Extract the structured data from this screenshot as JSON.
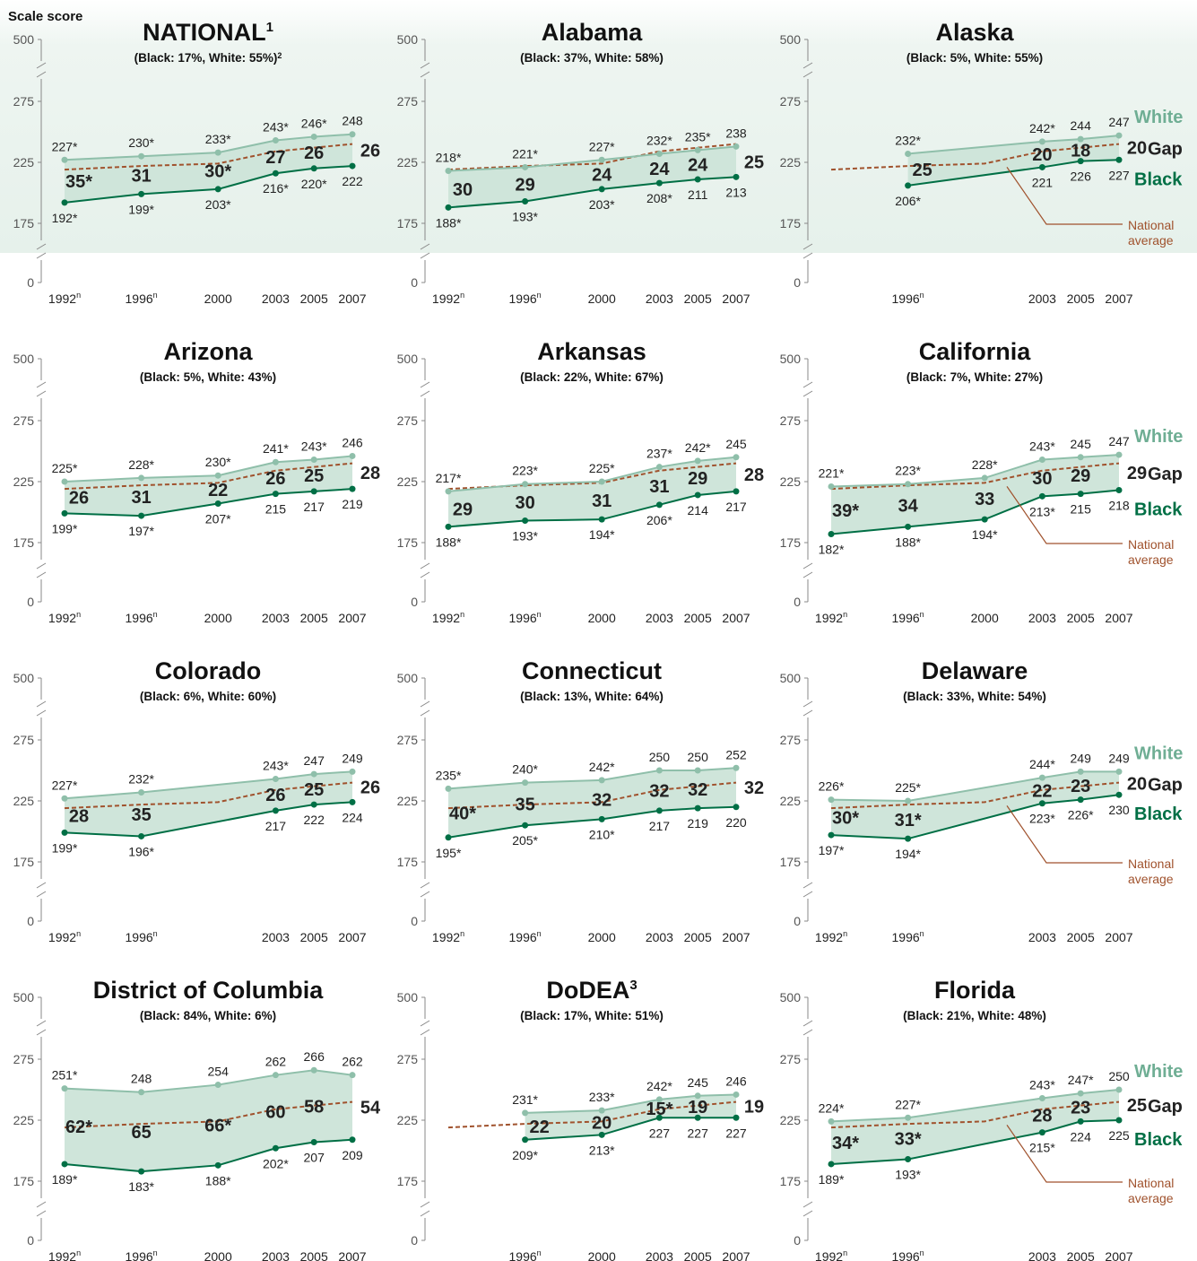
{
  "y_axis_label": "Scale score",
  "y_ticks": [
    "500",
    "275",
    "225",
    "175",
    "0"
  ],
  "legend": {
    "white": "White",
    "gap": "Gap",
    "black": "Black",
    "national_line1": "National",
    "national_line2": "average"
  },
  "colors": {
    "white_line": "#8fbfaa",
    "black_line": "#006f45",
    "fill": "#cfe5da",
    "national": "#a0522d",
    "legend_white": "#6fae94",
    "legend_black": "#006f45",
    "axis": "#888888"
  },
  "national_avg": {
    "x": [
      1992,
      1996,
      2000,
      2003,
      2005,
      2007
    ],
    "values": [
      219,
      222,
      224,
      234,
      237,
      240
    ]
  },
  "chart_data": [
    {
      "type": "line",
      "title": "NATIONAL",
      "title_sup": "1",
      "subtitle": "(Black: 17%, White: 55%)",
      "subtitle_sup": "2",
      "x": [
        1992,
        1996,
        2000,
        2003,
        2005,
        2007
      ],
      "x_labels": [
        "1992",
        "1996",
        "2000",
        "2003",
        "2005",
        "2007"
      ],
      "x_sup": [
        "n",
        "n",
        "",
        "",
        "",
        ""
      ],
      "series": [
        {
          "name": "White",
          "values": [
            227,
            230,
            233,
            243,
            246,
            248
          ],
          "labels": [
            "227*",
            "230*",
            "233*",
            "243*",
            "246*",
            "248"
          ]
        },
        {
          "name": "Black",
          "values": [
            192,
            199,
            203,
            216,
            220,
            222
          ],
          "labels": [
            "192*",
            "199*",
            "203*",
            "216*",
            "220*",
            "222"
          ]
        }
      ],
      "gaps": [
        "35*",
        "31",
        "30*",
        "27",
        "26",
        "26"
      ],
      "national_visible": true,
      "legend": false,
      "ylim": [
        175,
        275
      ]
    },
    {
      "type": "line",
      "title": "Alabama",
      "title_sup": "",
      "subtitle": "(Black: 37%, White: 58%)",
      "subtitle_sup": "",
      "x": [
        1992,
        1996,
        2000,
        2003,
        2005,
        2007
      ],
      "x_labels": [
        "1992",
        "1996",
        "2000",
        "2003",
        "2005",
        "2007"
      ],
      "x_sup": [
        "n",
        "n",
        "",
        "",
        "",
        ""
      ],
      "series": [
        {
          "name": "White",
          "values": [
            218,
            221,
            227,
            232,
            235,
            238
          ],
          "labels": [
            "218*",
            "221*",
            "227*",
            "232*",
            "235*",
            "238"
          ]
        },
        {
          "name": "Black",
          "values": [
            188,
            193,
            203,
            208,
            211,
            213
          ],
          "labels": [
            "188*",
            "193*",
            "203*",
            "208*",
            "211",
            "213"
          ]
        }
      ],
      "gaps": [
        "30",
        "29",
        "24",
        "24",
        "24",
        "25"
      ],
      "national_visible": true,
      "legend": false,
      "ylim": [
        175,
        275
      ]
    },
    {
      "type": "line",
      "title": "Alaska",
      "title_sup": "",
      "subtitle": "(Black: 5%, White: 55%)",
      "subtitle_sup": "",
      "x": [
        1996,
        2003,
        2005,
        2007
      ],
      "x_labels": [
        "1996",
        "2003",
        "2005",
        "2007"
      ],
      "x_sup": [
        "n",
        "",
        "",
        ""
      ],
      "series": [
        {
          "name": "White",
          "values": [
            232,
            242,
            244,
            247
          ],
          "labels": [
            "232*",
            "242*",
            "244",
            "247"
          ]
        },
        {
          "name": "Black",
          "values": [
            206,
            221,
            226,
            227
          ],
          "labels": [
            "206*",
            "221",
            "226",
            "227"
          ]
        }
      ],
      "gaps": [
        "25",
        "20",
        "18",
        "20"
      ],
      "national_visible": true,
      "legend": true,
      "ylim": [
        175,
        275
      ]
    },
    {
      "type": "line",
      "title": "Arizona",
      "title_sup": "",
      "subtitle": "(Black: 5%, White: 43%)",
      "subtitle_sup": "",
      "x": [
        1992,
        1996,
        2000,
        2003,
        2005,
        2007
      ],
      "x_labels": [
        "1992",
        "1996",
        "2000",
        "2003",
        "2005",
        "2007"
      ],
      "x_sup": [
        "n",
        "n",
        "",
        "",
        "",
        ""
      ],
      "series": [
        {
          "name": "White",
          "values": [
            225,
            228,
            230,
            241,
            243,
            246
          ],
          "labels": [
            "225*",
            "228*",
            "230*",
            "241*",
            "243*",
            "246"
          ]
        },
        {
          "name": "Black",
          "values": [
            199,
            197,
            207,
            215,
            217,
            219
          ],
          "labels": [
            "199*",
            "197*",
            "207*",
            "215",
            "217",
            "219"
          ]
        }
      ],
      "gaps": [
        "26",
        "31",
        "22",
        "26",
        "25",
        "28"
      ],
      "national_visible": true,
      "legend": false,
      "ylim": [
        175,
        275
      ]
    },
    {
      "type": "line",
      "title": "Arkansas",
      "title_sup": "",
      "subtitle": "(Black: 22%, White: 67%)",
      "subtitle_sup": "",
      "x": [
        1992,
        1996,
        2000,
        2003,
        2005,
        2007
      ],
      "x_labels": [
        "1992",
        "1996",
        "2000",
        "2003",
        "2005",
        "2007"
      ],
      "x_sup": [
        "n",
        "n",
        "",
        "",
        "",
        ""
      ],
      "series": [
        {
          "name": "White",
          "values": [
            217,
            223,
            225,
            237,
            242,
            245
          ],
          "labels": [
            "217*",
            "223*",
            "225*",
            "237*",
            "242*",
            "245"
          ]
        },
        {
          "name": "Black",
          "values": [
            188,
            193,
            194,
            206,
            214,
            217
          ],
          "labels": [
            "188*",
            "193*",
            "194*",
            "206*",
            "214",
            "217"
          ]
        }
      ],
      "gaps": [
        "29",
        "30",
        "31",
        "31",
        "29",
        "28"
      ],
      "national_visible": true,
      "legend": false,
      "ylim": [
        175,
        275
      ]
    },
    {
      "type": "line",
      "title": "California",
      "title_sup": "",
      "subtitle": "(Black: 7%, White: 27%)",
      "subtitle_sup": "",
      "x": [
        1992,
        1996,
        2000,
        2003,
        2005,
        2007
      ],
      "x_labels": [
        "1992",
        "1996",
        "2000",
        "2003",
        "2005",
        "2007"
      ],
      "x_sup": [
        "n",
        "n",
        "",
        "",
        "",
        ""
      ],
      "series": [
        {
          "name": "White",
          "values": [
            221,
            223,
            228,
            243,
            245,
            247
          ],
          "labels": [
            "221*",
            "223*",
            "228*",
            "243*",
            "245",
            "247"
          ]
        },
        {
          "name": "Black",
          "values": [
            182,
            188,
            194,
            213,
            215,
            218
          ],
          "labels": [
            "182*",
            "188*",
            "194*",
            "213*",
            "215",
            "218"
          ]
        }
      ],
      "gaps": [
        "39*",
        "34",
        "33",
        "30",
        "29",
        "29"
      ],
      "national_visible": true,
      "legend": true,
      "ylim": [
        175,
        275
      ]
    },
    {
      "type": "line",
      "title": "Colorado",
      "title_sup": "",
      "subtitle": "(Black: 6%, White: 60%)",
      "subtitle_sup": "",
      "x": [
        1992,
        1996,
        2003,
        2005,
        2007
      ],
      "x_labels": [
        "1992",
        "1996",
        "2003",
        "2005",
        "2007"
      ],
      "x_sup": [
        "n",
        "n",
        "",
        "",
        ""
      ],
      "series": [
        {
          "name": "White",
          "values": [
            227,
            232,
            243,
            247,
            249
          ],
          "labels": [
            "227*",
            "232*",
            "243*",
            "247",
            "249"
          ]
        },
        {
          "name": "Black",
          "values": [
            199,
            196,
            217,
            222,
            224
          ],
          "labels": [
            "199*",
            "196*",
            "217",
            "222",
            "224"
          ]
        }
      ],
      "gaps": [
        "28",
        "35",
        "26",
        "25",
        "26"
      ],
      "national_visible": true,
      "legend": false,
      "ylim": [
        175,
        275
      ]
    },
    {
      "type": "line",
      "title": "Connecticut",
      "title_sup": "",
      "subtitle": "(Black: 13%, White: 64%)",
      "subtitle_sup": "",
      "x": [
        1992,
        1996,
        2000,
        2003,
        2005,
        2007
      ],
      "x_labels": [
        "1992",
        "1996",
        "2000",
        "2003",
        "2005",
        "2007"
      ],
      "x_sup": [
        "n",
        "n",
        "",
        "",
        "",
        ""
      ],
      "series": [
        {
          "name": "White",
          "values": [
            235,
            240,
            242,
            250,
            250,
            252
          ],
          "labels": [
            "235*",
            "240*",
            "242*",
            "250",
            "250",
            "252"
          ]
        },
        {
          "name": "Black",
          "values": [
            195,
            205,
            210,
            217,
            219,
            220
          ],
          "labels": [
            "195*",
            "205*",
            "210*",
            "217",
            "219",
            "220"
          ]
        }
      ],
      "gaps": [
        "40*",
        "35",
        "32",
        "32",
        "32",
        "32"
      ],
      "national_visible": true,
      "legend": false,
      "ylim": [
        175,
        275
      ]
    },
    {
      "type": "line",
      "title": "Delaware",
      "title_sup": "",
      "subtitle": "(Black: 33%, White: 54%)",
      "subtitle_sup": "",
      "x": [
        1992,
        1996,
        2003,
        2005,
        2007
      ],
      "x_labels": [
        "1992",
        "1996",
        "2003",
        "2005",
        "2007"
      ],
      "x_sup": [
        "n",
        "n",
        "",
        "",
        ""
      ],
      "series": [
        {
          "name": "White",
          "values": [
            226,
            225,
            244,
            249,
            249
          ],
          "labels": [
            "226*",
            "225*",
            "244*",
            "249",
            "249"
          ]
        },
        {
          "name": "Black",
          "values": [
            197,
            194,
            223,
            226,
            230
          ],
          "labels": [
            "197*",
            "194*",
            "223*",
            "226*",
            "230"
          ]
        }
      ],
      "gaps": [
        "30*",
        "31*",
        "22",
        "23",
        "20"
      ],
      "national_visible": true,
      "legend": true,
      "ylim": [
        175,
        275
      ]
    },
    {
      "type": "line",
      "title": "District of Columbia",
      "title_sup": "",
      "subtitle": "(Black: 84%, White: 6%)",
      "subtitle_sup": "",
      "x": [
        1992,
        1996,
        2000,
        2003,
        2005,
        2007
      ],
      "x_labels": [
        "1992",
        "1996",
        "2000",
        "2003",
        "2005",
        "2007"
      ],
      "x_sup": [
        "n",
        "n",
        "",
        "",
        "",
        ""
      ],
      "series": [
        {
          "name": "White",
          "values": [
            251,
            248,
            254,
            262,
            266,
            262
          ],
          "labels": [
            "251*",
            "248",
            "254",
            "262",
            "266",
            "262"
          ]
        },
        {
          "name": "Black",
          "values": [
            189,
            183,
            188,
            202,
            207,
            209
          ],
          "labels": [
            "189*",
            "183*",
            "188*",
            "202*",
            "207",
            "209"
          ]
        }
      ],
      "gaps": [
        "62*",
        "65",
        "66*",
        "60",
        "58",
        "54"
      ],
      "national_visible": true,
      "legend": false,
      "ylim": [
        175,
        275
      ]
    },
    {
      "type": "line",
      "title": "DoDEA",
      "title_sup": "3",
      "subtitle": "(Black: 17%, White: 51%)",
      "subtitle_sup": "",
      "x": [
        1996,
        2000,
        2003,
        2005,
        2007
      ],
      "x_labels": [
        "1996",
        "2000",
        "2003",
        "2005",
        "2007"
      ],
      "x_sup": [
        "n",
        "",
        "",
        "",
        ""
      ],
      "series": [
        {
          "name": "White",
          "values": [
            231,
            233,
            242,
            245,
            246
          ],
          "labels": [
            "231*",
            "233*",
            "242*",
            "245",
            "246"
          ]
        },
        {
          "name": "Black",
          "values": [
            209,
            213,
            227,
            227,
            227
          ],
          "labels": [
            "209*",
            "213*",
            "227",
            "227",
            "227"
          ]
        }
      ],
      "gaps": [
        "22",
        "20",
        "15*",
        "19",
        "19"
      ],
      "national_visible": true,
      "legend": false,
      "ylim": [
        175,
        275
      ]
    },
    {
      "type": "line",
      "title": "Florida",
      "title_sup": "",
      "subtitle": "(Black: 21%, White: 48%)",
      "subtitle_sup": "",
      "x": [
        1992,
        1996,
        2003,
        2005,
        2007
      ],
      "x_labels": [
        "1992",
        "1996",
        "2003",
        "2005",
        "2007"
      ],
      "x_sup": [
        "n",
        "n",
        "",
        "",
        ""
      ],
      "series": [
        {
          "name": "White",
          "values": [
            224,
            227,
            243,
            247,
            250
          ],
          "labels": [
            "224*",
            "227*",
            "243*",
            "247*",
            "250"
          ]
        },
        {
          "name": "Black",
          "values": [
            189,
            193,
            215,
            224,
            225
          ],
          "labels": [
            "189*",
            "193*",
            "215*",
            "224",
            "225"
          ]
        }
      ],
      "gaps": [
        "34*",
        "33*",
        "28",
        "23",
        "25"
      ],
      "national_visible": true,
      "legend": true,
      "ylim": [
        175,
        275
      ]
    }
  ]
}
